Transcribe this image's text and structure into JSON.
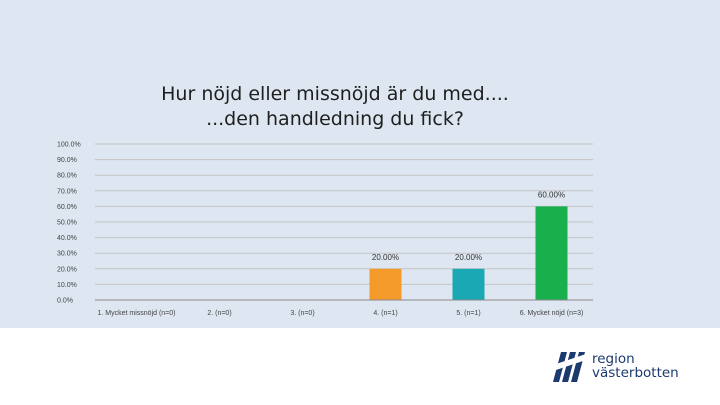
{
  "chart_data": {
    "type": "bar",
    "title_lines": [
      "Hur nöjd eller missnöjd är du med....",
      "...den handledning du fick?"
    ],
    "categories": [
      "1. Mycket missnöjd (n=0)",
      "2. (n=0)",
      "3. (n=0)",
      "4. (n=1)",
      "5. (n=1)",
      "6. Mycket nöjd (n=3)"
    ],
    "values": [
      0,
      0,
      0,
      20,
      20,
      60
    ],
    "data_labels": [
      "",
      "",
      "",
      "20.00%",
      "20.00%",
      "60.00%"
    ],
    "bar_colors": [
      "#ed8b22",
      "#ed8b22",
      "#ed8b22",
      "#f39a2a",
      "#1aa9b4",
      "#17b04c"
    ],
    "y_ticks": [
      0,
      10,
      20,
      30,
      40,
      50,
      60,
      70,
      80,
      90,
      100
    ],
    "y_tick_labels": [
      "0.0%",
      "10.0%",
      "20.0%",
      "30.0%",
      "40.0%",
      "50.0%",
      "60.0%",
      "70.0%",
      "80.0%",
      "90.0%",
      "100.0%"
    ],
    "ylim": [
      0,
      100
    ],
    "grid": true,
    "legend": "none"
  },
  "logo": {
    "line1": "region",
    "line2": "västerbotten",
    "color": "#1b3a6e"
  }
}
